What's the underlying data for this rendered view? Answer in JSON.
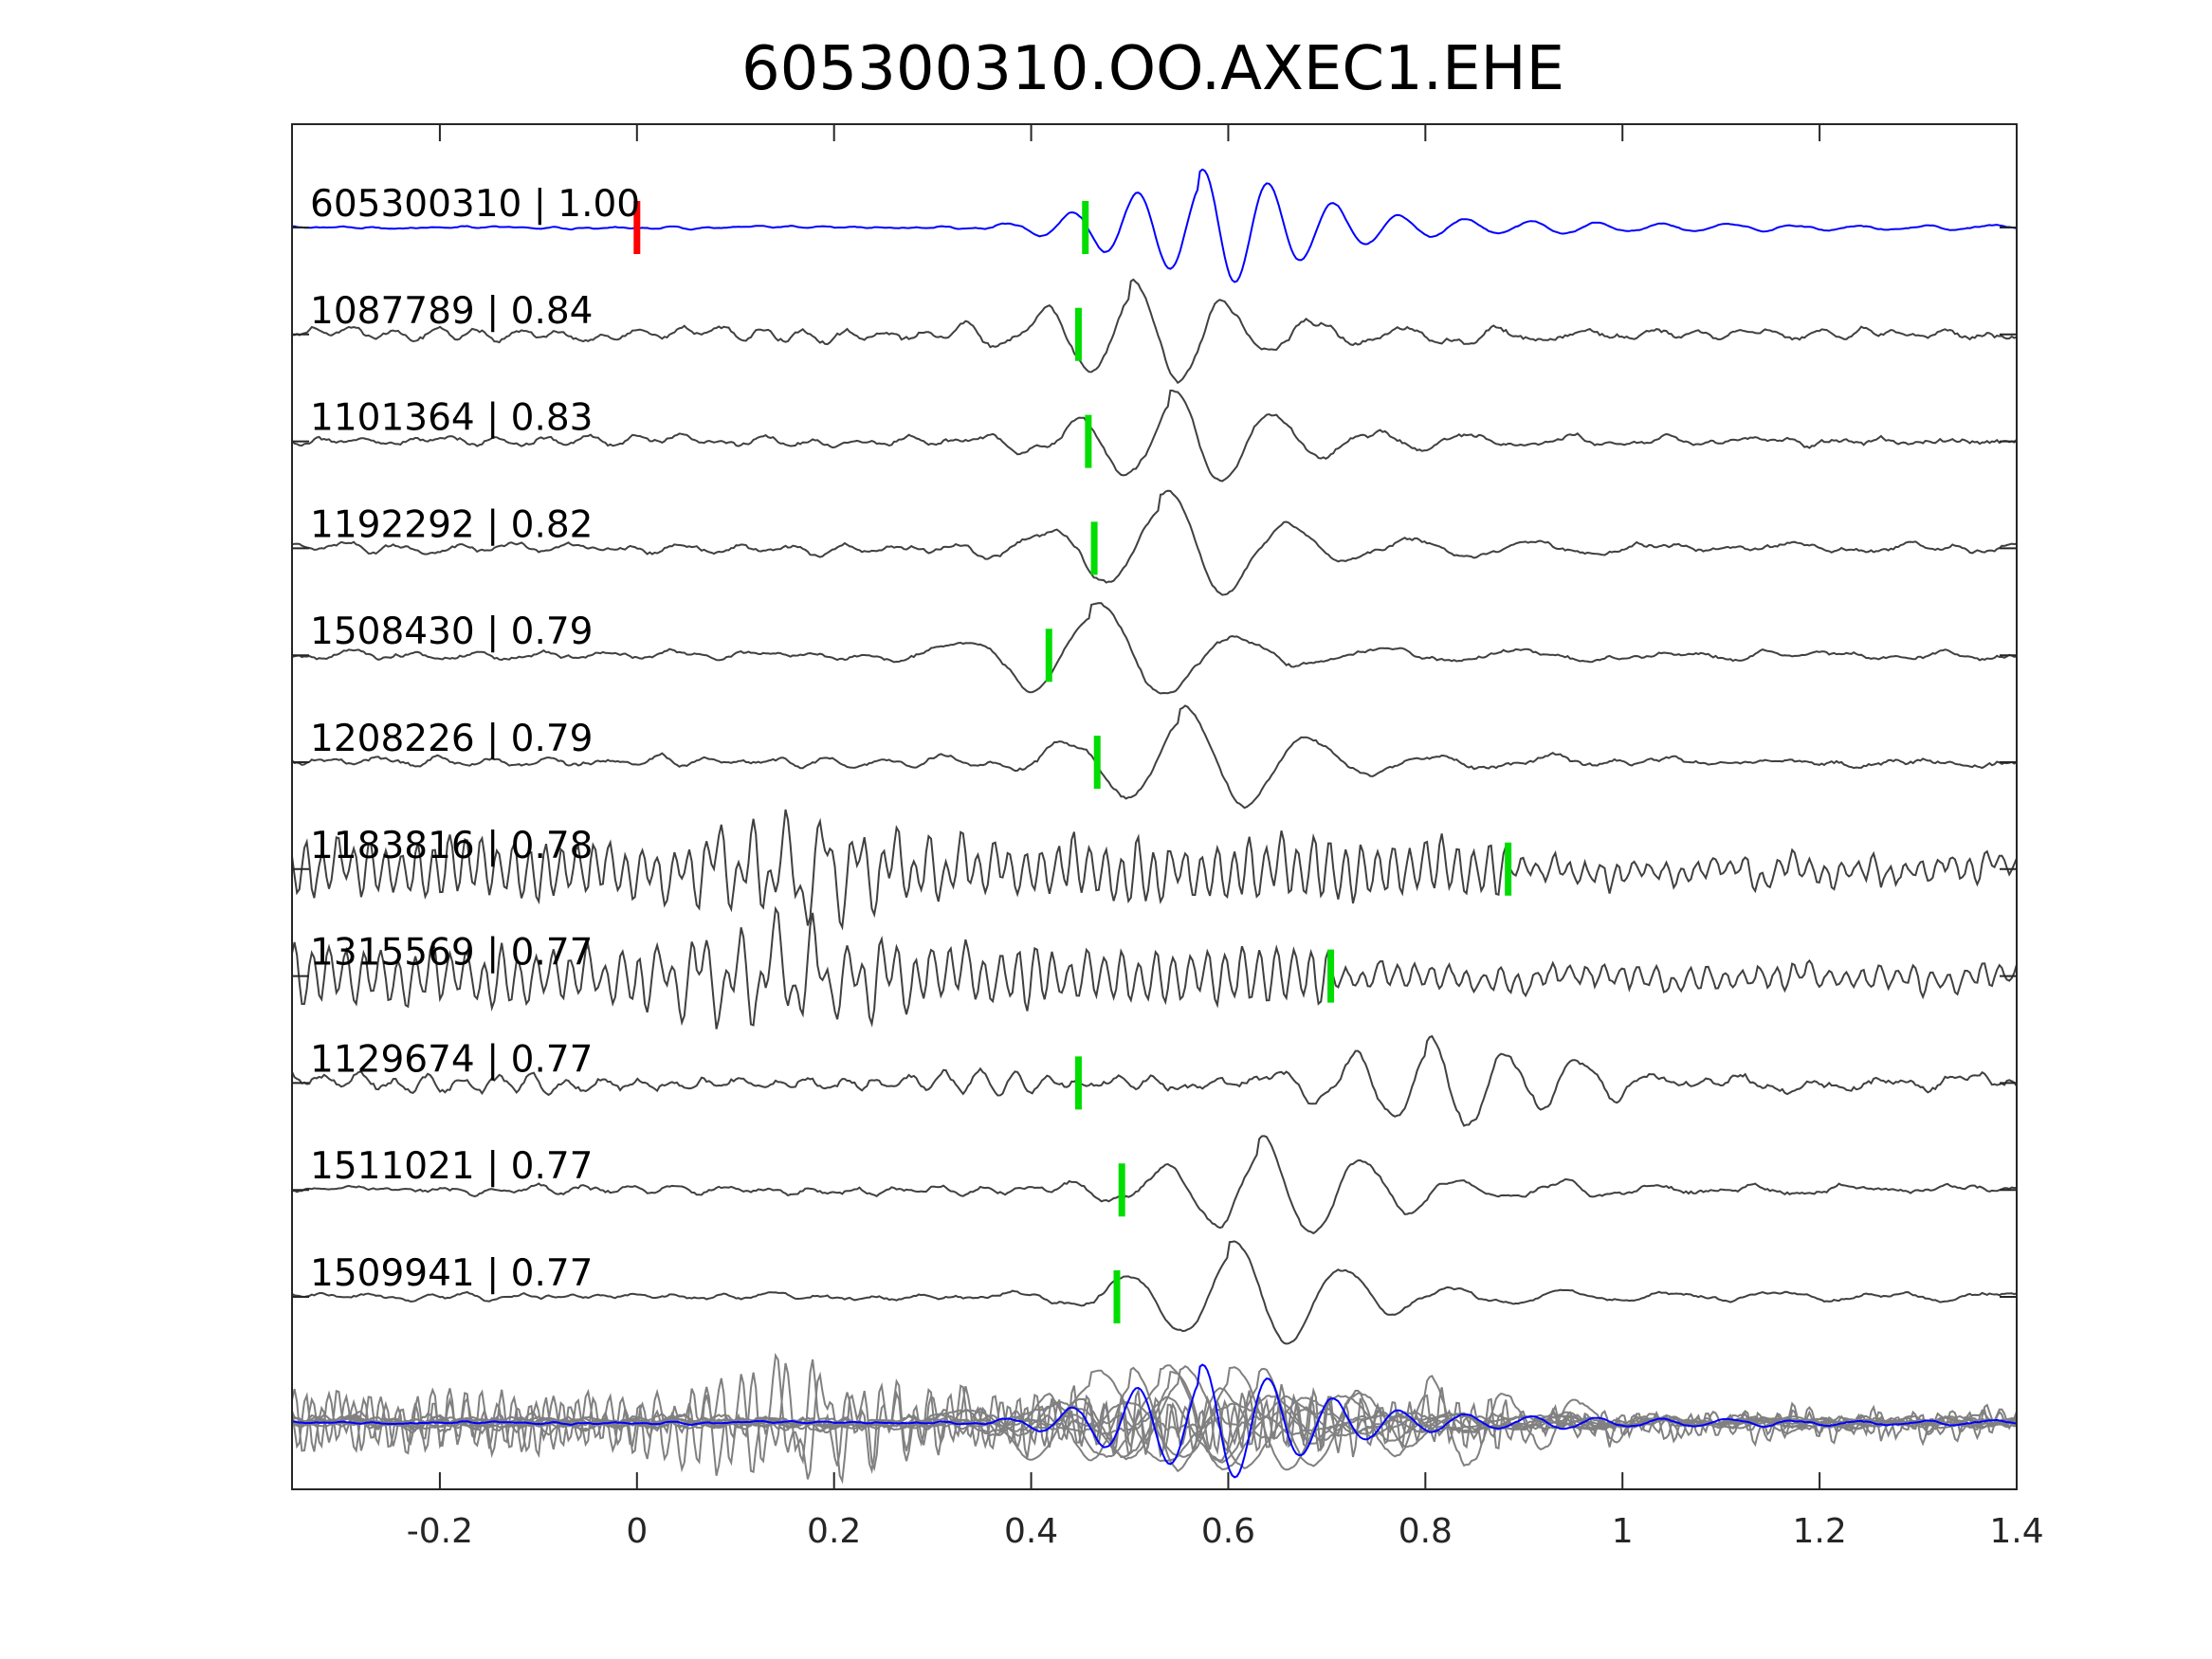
{
  "chart_data": {
    "type": "line",
    "title": "605300310.OO.AXEC1.EHE",
    "xlabel": "",
    "ylabel": "",
    "xlim": [
      -0.35,
      1.4
    ],
    "x_ticks": [
      -0.2,
      0,
      0.2,
      0.4,
      0.6,
      0.8,
      1,
      1.2,
      1.4
    ],
    "x_tick_labels": [
      "-0.2",
      "0",
      "0.2",
      "0.4",
      "0.6",
      "0.8",
      "1",
      "1.2",
      "1.4"
    ],
    "grid": false,
    "reference_marker": {
      "x": 0.0,
      "color": "#ff0000"
    },
    "pick_color": "#00dd00",
    "template_color": "#0000ff",
    "match_color": "#404040",
    "stack_color": "#808080",
    "traces": [
      {
        "label": "605300310 | 1.00",
        "id": "605300310",
        "cc": 1.0,
        "pick": 0.455,
        "template": true,
        "peak": 0.57,
        "amp": 1.0,
        "freq": 15,
        "noise": 0.06,
        "pre": 0.02
      },
      {
        "label": "1087789 | 0.84",
        "id": "1087789",
        "cc": 0.84,
        "pick": 0.448,
        "peak": 0.5,
        "amp": 0.9,
        "freq": 11,
        "noise": 0.25,
        "pre": 0.18
      },
      {
        "label": "1101364 | 0.83",
        "id": "1101364",
        "cc": 0.83,
        "pick": 0.458,
        "peak": 0.54,
        "amp": 0.85,
        "freq": 10,
        "noise": 0.22,
        "pre": 0.12
      },
      {
        "label": "1192292 | 0.82",
        "id": "1192292",
        "cc": 0.82,
        "pick": 0.464,
        "peak": 0.53,
        "amp": 0.95,
        "freq": 8,
        "noise": 0.2,
        "pre": 0.12
      },
      {
        "label": "1508430 | 0.79",
        "id": "1508430",
        "cc": 0.79,
        "pick": 0.418,
        "peak": 0.46,
        "amp": 0.9,
        "freq": 7,
        "noise": 0.18,
        "pre": 0.08
      },
      {
        "label": "1208226 | 0.79",
        "id": "1208226",
        "cc": 0.79,
        "pick": 0.467,
        "peak": 0.55,
        "amp": 0.95,
        "freq": 8,
        "noise": 0.2,
        "pre": 0.12
      },
      {
        "label": "1183816 | 0.78",
        "id": "1183816",
        "cc": 0.78,
        "pick": 0.884,
        "peak": 0.15,
        "amp": 0.7,
        "freq": 28,
        "noise": 0.55,
        "pre": 0.9
      },
      {
        "label": "1315569 | 0.77",
        "id": "1315569",
        "cc": 0.77,
        "pick": 0.704,
        "peak": 0.1,
        "amp": 0.65,
        "freq": 26,
        "noise": 0.5,
        "pre": 0.9
      },
      {
        "label": "1129674 | 0.77",
        "id": "1129674",
        "cc": 0.77,
        "pick": 0.448,
        "peak": 0.8,
        "amp": 0.85,
        "freq": 13,
        "noise": 0.35,
        "pre": 0.2
      },
      {
        "label": "1511021 | 0.77",
        "id": "1511021",
        "cc": 0.77,
        "pick": 0.492,
        "peak": 0.63,
        "amp": 0.9,
        "freq": 10,
        "noise": 0.2,
        "pre": 0.1
      },
      {
        "label": "1509941 | 0.77",
        "id": "1509941",
        "cc": 0.77,
        "pick": 0.487,
        "peak": 0.6,
        "amp": 0.95,
        "freq": 9,
        "noise": 0.15,
        "pre": 0.05
      }
    ],
    "stack": {
      "description": "overlay of all traces",
      "include_template": true
    }
  }
}
